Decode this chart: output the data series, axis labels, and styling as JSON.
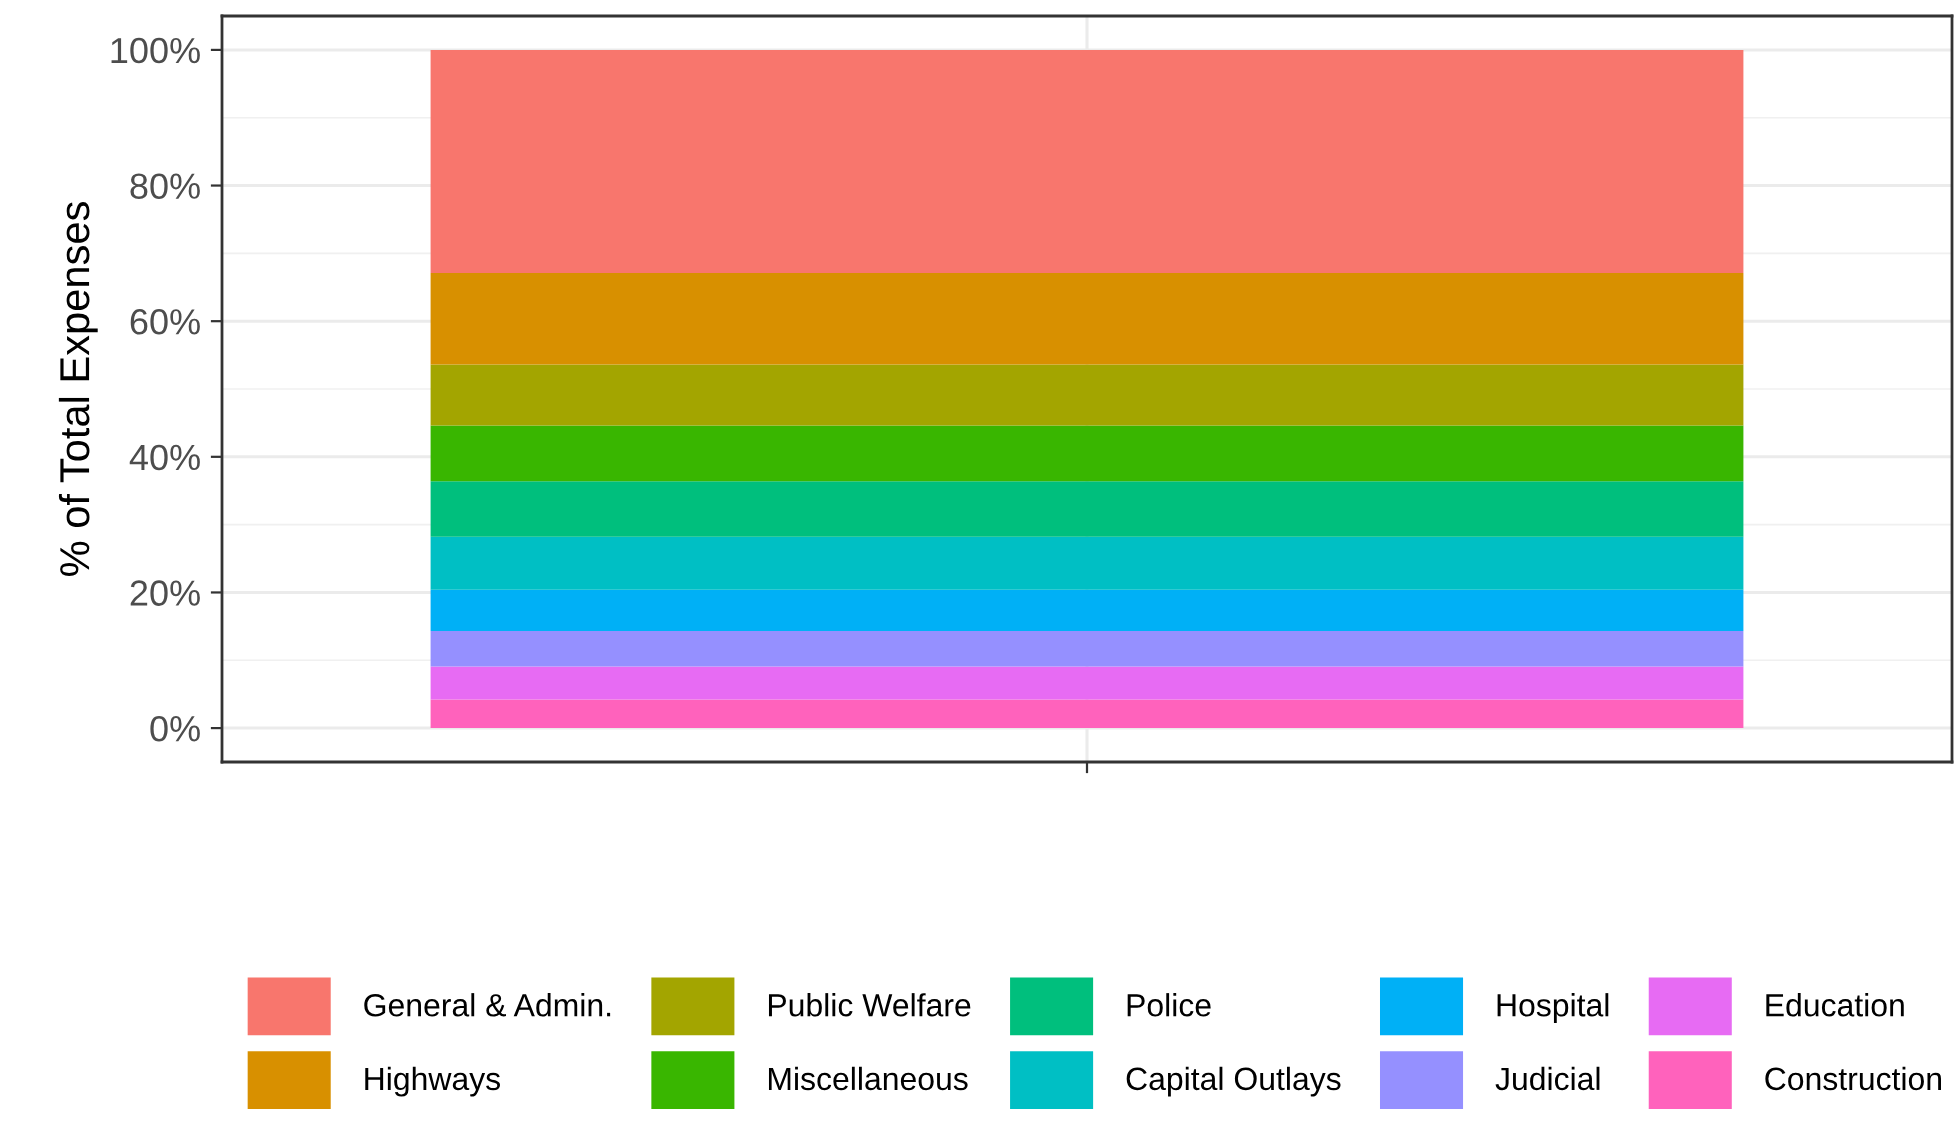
{
  "chart_data": {
    "type": "bar",
    "stacked": true,
    "ylabel": "% of Total Expenses",
    "categories": [
      null
    ],
    "series": [
      {
        "name": "Construction",
        "color": "#ff62bc",
        "values": [
          4.2
        ]
      },
      {
        "name": "Education",
        "color": "#e76bf3",
        "values": [
          4.9
        ]
      },
      {
        "name": "Judicial",
        "color": "#9590ff",
        "values": [
          5.2
        ]
      },
      {
        "name": "Hospital",
        "color": "#00b0f6",
        "values": [
          6.1
        ]
      },
      {
        "name": "Capital Outlays",
        "color": "#00bfc4",
        "values": [
          7.8
        ]
      },
      {
        "name": "Police",
        "color": "#00bf7d",
        "values": [
          8.2
        ]
      },
      {
        "name": "Miscellaneous",
        "color": "#39b600",
        "values": [
          8.2
        ]
      },
      {
        "name": "Public Welfare",
        "color": "#a3a500",
        "values": [
          9.0
        ]
      },
      {
        "name": "Highways",
        "color": "#d89000",
        "values": [
          13.5
        ]
      },
      {
        "name": "General & Admin.",
        "color": "#f8766d",
        "values": [
          32.9
        ]
      }
    ],
    "ylim": [
      -5,
      105
    ],
    "yticks": [
      {
        "value": 0,
        "label": "0%"
      },
      {
        "value": 20,
        "label": "20%"
      },
      {
        "value": 40,
        "label": "40%"
      },
      {
        "value": 60,
        "label": "60%"
      },
      {
        "value": 80,
        "label": "80%"
      },
      {
        "value": 100,
        "label": "100%"
      }
    ],
    "grid": true,
    "legend": "bottom"
  }
}
